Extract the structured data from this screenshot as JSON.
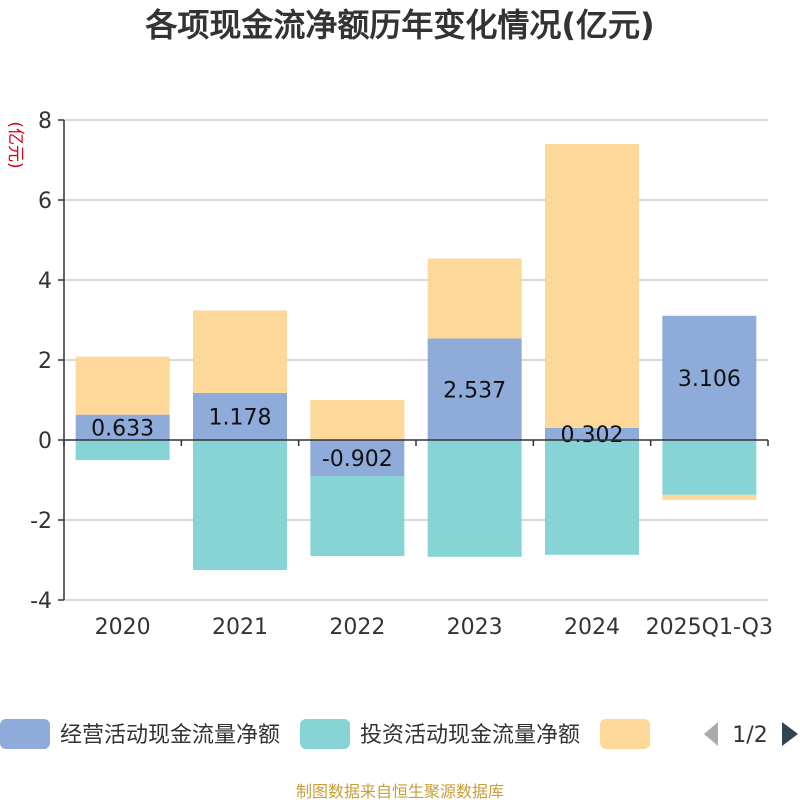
{
  "chart_data": {
    "type": "bar",
    "title": "各项现金流净额历年变化情况(亿元)",
    "ylabel": "(亿元)",
    "ylim": [
      -4,
      8
    ],
    "yticks": [
      8,
      6,
      4,
      2,
      0,
      -2,
      -4
    ],
    "categories": [
      "2020",
      "2021",
      "2022",
      "2023",
      "2024",
      "2025Q1-Q3"
    ],
    "series": [
      {
        "name": "经营活动现金流量净额",
        "color": "#8eabd9",
        "values": [
          0.633,
          1.178,
          -0.902,
          2.537,
          0.302,
          3.106
        ],
        "labels": [
          "0.633",
          "1.178",
          "-0.902",
          "2.537",
          "0.302",
          "3.106"
        ]
      },
      {
        "name": "投资活动现金流量净额",
        "color": "#87d4d6",
        "values": [
          -0.5,
          -3.25,
          -2.0,
          -2.92,
          -2.87,
          -1.37
        ]
      },
      {
        "name": "",
        "color": "#fdd899",
        "values": [
          1.45,
          2.06,
          1.0,
          2.0,
          7.1,
          -0.13
        ]
      }
    ],
    "grid": true,
    "legend": "bottom",
    "legend_page": "1/2",
    "source": "制图数据来自恒生聚源数据库"
  }
}
